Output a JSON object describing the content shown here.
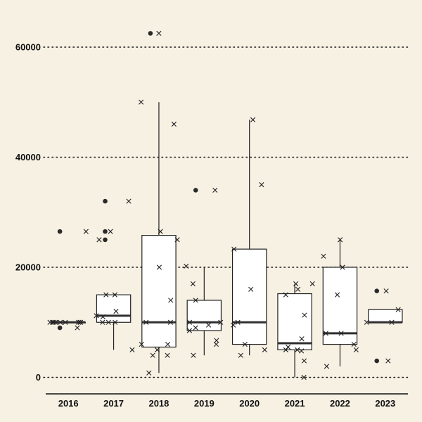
{
  "chart_data": {
    "type": "box",
    "title": "",
    "xlabel": "",
    "ylabel": "",
    "ylim": [
      -3000,
      66000
    ],
    "yticks": [
      0,
      20000,
      40000,
      60000
    ],
    "grid": "horizontal-dotted",
    "categories": [
      "2016",
      "2017",
      "2018",
      "2019",
      "2020",
      "2021",
      "2022",
      "2023"
    ],
    "boxes": [
      {
        "category": "2016",
        "whisker_low": 10000,
        "q1": 10000,
        "median": 10000,
        "q3": 10000,
        "whisker_high": 10000,
        "outliers": [
          26500,
          9000
        ]
      },
      {
        "category": "2017",
        "whisker_low": 5000,
        "q1": 10000,
        "median": 11200,
        "q3": 15000,
        "whisker_high": 15000,
        "outliers": [
          32000,
          26500,
          25000
        ]
      },
      {
        "category": "2018",
        "whisker_low": 800,
        "q1": 5500,
        "median": 10000,
        "q3": 25800,
        "whisker_high": 50000,
        "outliers": [
          62500
        ]
      },
      {
        "category": "2019",
        "whisker_low": 4000,
        "q1": 8500,
        "median": 10000,
        "q3": 14000,
        "whisker_high": 20000,
        "outliers": [
          34000
        ]
      },
      {
        "category": "2020",
        "whisker_low": 4000,
        "q1": 6000,
        "median": 10000,
        "q3": 23300,
        "whisker_high": 46800,
        "outliers": []
      },
      {
        "category": "2021",
        "whisker_low": 0,
        "q1": 5000,
        "median": 6200,
        "q3": 15200,
        "whisker_high": 17000,
        "outliers": []
      },
      {
        "category": "2022",
        "whisker_low": 2000,
        "q1": 6000,
        "median": 8000,
        "q3": 20000,
        "whisker_high": 25000,
        "outliers": []
      },
      {
        "category": "2023",
        "whisker_low": 10000,
        "q1": 10000,
        "median": 10000,
        "q3": 12300,
        "whisker_high": 12300,
        "outliers": [
          15700,
          3000
        ]
      }
    ],
    "points": [
      {
        "category": "2016",
        "values": [
          9000,
          10000,
          10000,
          10000,
          10000,
          10000,
          10000,
          26500,
          10000,
          10000,
          10000
        ]
      },
      {
        "category": "2017",
        "values": [
          12000,
          10000,
          15000,
          10000,
          25000,
          11200,
          32000,
          10000,
          26500,
          5000,
          11000,
          15000
        ]
      },
      {
        "category": "2018",
        "values": [
          5000,
          4000,
          46000,
          6000,
          10000,
          50000,
          26500,
          800,
          20000,
          14000,
          4000,
          25000,
          62500,
          6000,
          10000
        ]
      },
      {
        "category": "2019",
        "values": [
          14000,
          10000,
          9500,
          8500,
          17000,
          6000,
          34000,
          20200,
          10000,
          9000,
          6700,
          4000
        ]
      },
      {
        "category": "2020",
        "values": [
          35000,
          16000,
          5000,
          4000,
          10000,
          23300,
          6000,
          9500,
          46800
        ]
      },
      {
        "category": "2021",
        "values": [
          3000,
          5000,
          7000,
          17000,
          4800,
          15000,
          0,
          16000,
          5500,
          11300,
          17000,
          5000
        ]
      },
      {
        "category": "2022",
        "values": [
          25000,
          20000,
          8000,
          15000,
          5000,
          2000,
          22000,
          6000,
          8000
        ]
      },
      {
        "category": "2023",
        "values": [
          15700,
          3000,
          12300,
          10000,
          10000
        ]
      }
    ],
    "colors": {
      "background": "#f7f1e4",
      "box_fill": "#ffffff",
      "ink": "#222222"
    }
  }
}
